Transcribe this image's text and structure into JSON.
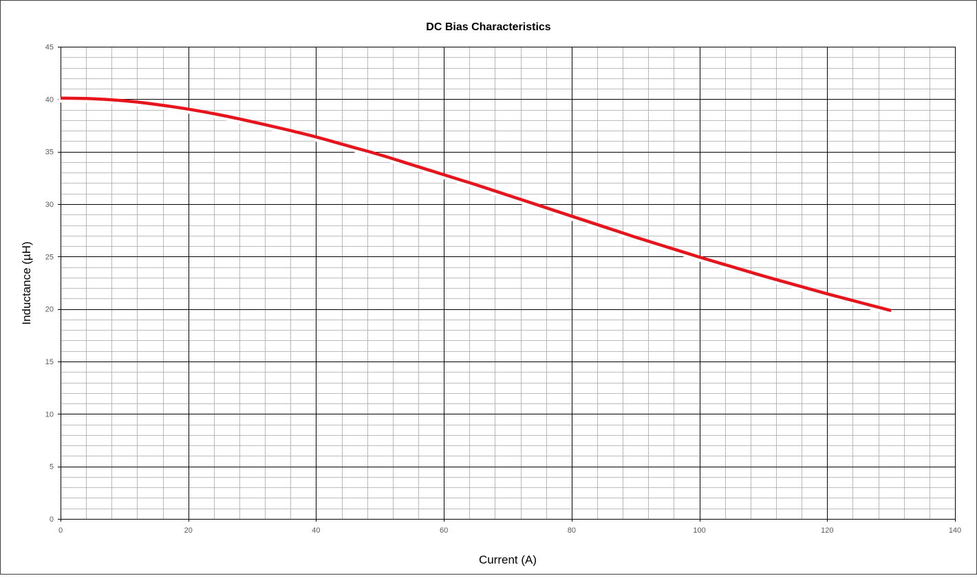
{
  "chart_data": {
    "type": "line",
    "title": "DC Bias Characteristics",
    "xlabel": "Current (A)",
    "ylabel": "Inductance (µH)",
    "xlim": [
      0,
      140
    ],
    "ylim": [
      0,
      45
    ],
    "x_ticks": [
      "0",
      "20",
      "40",
      "60",
      "80",
      "100",
      "120",
      "140"
    ],
    "y_ticks": [
      "0",
      "5",
      "10",
      "15",
      "20",
      "25",
      "30",
      "35",
      "40",
      "45"
    ],
    "x_major_step": 20,
    "x_minor_step": 4,
    "y_major_step": 5,
    "y_minor_step": 1,
    "grid": true,
    "legend": "none",
    "colors": {
      "line": "#e8141b",
      "major_grid": "#000000",
      "minor_grid": "#a6a6a6",
      "tick_label": "#595959"
    },
    "series": [
      {
        "x": [
          0,
          5,
          10,
          15,
          20,
          25,
          30,
          35,
          40,
          45,
          50,
          55,
          60,
          65,
          70,
          75,
          80,
          85,
          90,
          95,
          100,
          105,
          110,
          115,
          120,
          125,
          130
        ],
        "values": [
          40.1,
          40.05,
          39.85,
          39.5,
          39.05,
          38.5,
          37.85,
          37.15,
          36.4,
          35.55,
          34.7,
          33.75,
          32.8,
          31.85,
          30.85,
          29.85,
          28.85,
          27.85,
          26.85,
          25.9,
          24.95,
          24.05,
          23.15,
          22.3,
          21.45,
          20.65,
          19.85
        ]
      }
    ]
  }
}
